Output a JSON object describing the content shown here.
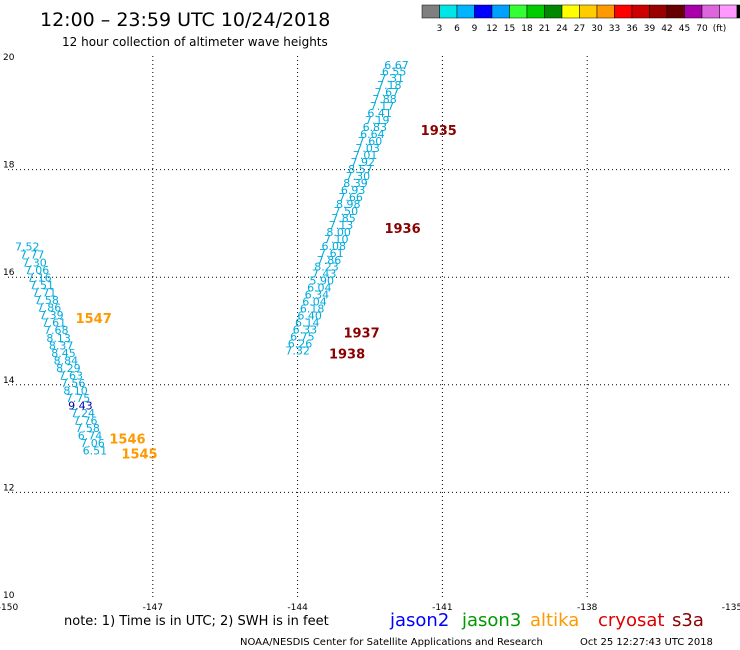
{
  "header": {
    "title": "12:00 – 23:59 UTC 10/24/2018",
    "subtitle": "12 hour collection of altimeter wave heights"
  },
  "scale_bar": {
    "colors": [
      "#7f7f7f",
      "#00e6e6",
      "#00b4ff",
      "#0000ff",
      "#00a0ff",
      "#33ff33",
      "#00cc00",
      "#008800",
      "#ffff00",
      "#ffcc00",
      "#ff9900",
      "#ff0000",
      "#cc0000",
      "#990000",
      "#660000",
      "#aa00aa",
      "#dd66dd",
      "#ff99ff",
      "#000000"
    ],
    "labels": [
      "3",
      "6",
      "9",
      "12",
      "15",
      "18",
      "21",
      "24",
      "27",
      "30",
      "33",
      "36",
      "39",
      "42",
      "45",
      "70",
      "(ft)"
    ]
  },
  "chart_data": {
    "type": "scatter",
    "title": "12:00 – 23:59 UTC 10/24/2018",
    "subtitle": "12 hour collection of altimeter wave heights",
    "xlabel": "",
    "ylabel": "",
    "xlim": [
      -150,
      -135
    ],
    "ylim": [
      10,
      20
    ],
    "x_ticks": [
      "-150",
      "-147",
      "-144",
      "-141",
      "-138",
      "-135"
    ],
    "y_ticks": [
      "10",
      "12",
      "14",
      "16",
      "18",
      "20"
    ],
    "grid": true,
    "series": [
      {
        "name": "altika",
        "color": "#00aadd",
        "points": [
          {
            "lon": -149.6,
            "lat": 16.5,
            "swh": "7.52"
          },
          {
            "lon": -149.5,
            "lat": 16.35,
            "swh": "7.77"
          },
          {
            "lon": -149.45,
            "lat": 16.2,
            "swh": "7.30"
          },
          {
            "lon": -149.4,
            "lat": 16.06,
            "swh": "7.06"
          },
          {
            "lon": -149.35,
            "lat": 15.92,
            "swh": "7.16"
          },
          {
            "lon": -149.3,
            "lat": 15.78,
            "swh": "7.51"
          },
          {
            "lon": -149.25,
            "lat": 15.64,
            "swh": "7.71"
          },
          {
            "lon": -149.2,
            "lat": 15.5,
            "swh": "7.58"
          },
          {
            "lon": -149.15,
            "lat": 15.36,
            "swh": "7.86"
          },
          {
            "lon": -149.1,
            "lat": 15.22,
            "swh": "7.39"
          },
          {
            "lon": -149.05,
            "lat": 15.08,
            "swh": "7.61"
          },
          {
            "lon": -149.0,
            "lat": 14.94,
            "swh": "7.68"
          },
          {
            "lon": -148.95,
            "lat": 14.8,
            "swh": "8.13"
          },
          {
            "lon": -148.9,
            "lat": 14.66,
            "swh": "8.37"
          },
          {
            "lon": -148.85,
            "lat": 14.52,
            "swh": "8.45"
          },
          {
            "lon": -148.8,
            "lat": 14.38,
            "swh": "8.84"
          },
          {
            "lon": -148.75,
            "lat": 14.24,
            "swh": "8.29"
          },
          {
            "lon": -148.7,
            "lat": 14.1,
            "swh": "7.63"
          },
          {
            "lon": -148.65,
            "lat": 13.96,
            "swh": "7.56"
          },
          {
            "lon": -148.6,
            "lat": 13.82,
            "swh": "8.10"
          },
          {
            "lon": -148.55,
            "lat": 13.68,
            "swh": "7.75"
          },
          {
            "lon": -148.5,
            "lat": 13.54,
            "swh": "9.43",
            "color": "#0000aa"
          },
          {
            "lon": -148.45,
            "lat": 13.4,
            "swh": "7.24"
          },
          {
            "lon": -148.4,
            "lat": 13.26,
            "swh": "7.76"
          },
          {
            "lon": -148.35,
            "lat": 13.12,
            "swh": "7.58"
          },
          {
            "lon": -148.3,
            "lat": 12.98,
            "swh": "6.74"
          },
          {
            "lon": -148.25,
            "lat": 12.84,
            "swh": "7.06"
          },
          {
            "lon": -148.2,
            "lat": 12.7,
            "swh": "6.51"
          }
        ]
      },
      {
        "name": "altika",
        "color": "#00aadd",
        "points": [
          {
            "lon": -141.95,
            "lat": 19.87,
            "swh": "6.67"
          },
          {
            "lon": -142.0,
            "lat": 19.75,
            "swh": "6.55"
          },
          {
            "lon": -142.05,
            "lat": 19.63,
            "swh": "7.31"
          },
          {
            "lon": -142.1,
            "lat": 19.5,
            "swh": "7.18"
          },
          {
            "lon": -142.15,
            "lat": 19.37,
            "swh": "7.67"
          },
          {
            "lon": -142.2,
            "lat": 19.24,
            "swh": "7.88"
          },
          {
            "lon": -142.25,
            "lat": 19.11,
            "swh": "7.17"
          },
          {
            "lon": -142.3,
            "lat": 18.98,
            "swh": "6.41"
          },
          {
            "lon": -142.35,
            "lat": 18.85,
            "swh": "7.19"
          },
          {
            "lon": -142.4,
            "lat": 18.72,
            "swh": "6.83"
          },
          {
            "lon": -142.45,
            "lat": 18.59,
            "swh": "6.64"
          },
          {
            "lon": -142.5,
            "lat": 18.46,
            "swh": "7.60"
          },
          {
            "lon": -142.55,
            "lat": 18.33,
            "swh": "7.03"
          },
          {
            "lon": -142.6,
            "lat": 18.2,
            "swh": "7.01"
          },
          {
            "lon": -142.65,
            "lat": 18.07,
            "swh": "7.92"
          },
          {
            "lon": -142.7,
            "lat": 17.94,
            "swh": "8.57"
          },
          {
            "lon": -142.75,
            "lat": 17.81,
            "swh": "7.30"
          },
          {
            "lon": -142.8,
            "lat": 17.68,
            "swh": "8.39"
          },
          {
            "lon": -142.85,
            "lat": 17.55,
            "swh": "6.93"
          },
          {
            "lon": -142.9,
            "lat": 17.42,
            "swh": "7.66"
          },
          {
            "lon": -142.95,
            "lat": 17.29,
            "swh": "8.98"
          },
          {
            "lon": -143.0,
            "lat": 17.16,
            "swh": "7.50"
          },
          {
            "lon": -143.05,
            "lat": 17.03,
            "swh": "7.85"
          },
          {
            "lon": -143.1,
            "lat": 16.9,
            "swh": "7.13"
          },
          {
            "lon": -143.15,
            "lat": 16.77,
            "swh": "8.00"
          },
          {
            "lon": -143.2,
            "lat": 16.64,
            "swh": "7.10"
          },
          {
            "lon": -143.25,
            "lat": 16.51,
            "swh": "6.08"
          },
          {
            "lon": -143.3,
            "lat": 16.38,
            "swh": "7.61"
          },
          {
            "lon": -143.35,
            "lat": 16.25,
            "swh": "7.86"
          },
          {
            "lon": -143.4,
            "lat": 16.12,
            "swh": "8.23"
          },
          {
            "lon": -143.45,
            "lat": 15.99,
            "swh": "7.43"
          },
          {
            "lon": -143.5,
            "lat": 15.86,
            "swh": "5.90"
          },
          {
            "lon": -143.55,
            "lat": 15.73,
            "swh": "6.04"
          },
          {
            "lon": -143.6,
            "lat": 15.6,
            "swh": "6.34"
          },
          {
            "lon": -143.65,
            "lat": 15.47,
            "swh": "6.04"
          },
          {
            "lon": -143.7,
            "lat": 15.34,
            "swh": "6.18"
          },
          {
            "lon": -143.75,
            "lat": 15.21,
            "swh": "6.40"
          },
          {
            "lon": -143.8,
            "lat": 15.08,
            "swh": "6.14"
          },
          {
            "lon": -143.85,
            "lat": 14.95,
            "swh": "6.33"
          },
          {
            "lon": -143.9,
            "lat": 14.82,
            "swh": "6.75"
          },
          {
            "lon": -143.95,
            "lat": 14.69,
            "swh": "6.26"
          },
          {
            "lon": -144.0,
            "lat": 14.56,
            "swh": "7.32"
          }
        ]
      }
    ],
    "time_labels": [
      {
        "text": "1547",
        "color": "#ff9900"
      },
      {
        "text": "1546",
        "color": "#ff9900"
      },
      {
        "text": "1545",
        "color": "#ff9900"
      },
      {
        "text": "1935",
        "color": "#8b0000"
      },
      {
        "text": "1936",
        "color": "#8b0000"
      },
      {
        "text": "1937",
        "color": "#8b0000"
      },
      {
        "text": "1938",
        "color": "#8b0000"
      }
    ]
  },
  "footer": {
    "note": "note:  1) Time is in UTC;  2) SWH is in feet",
    "legend": [
      {
        "name": "jason2",
        "color": "#0000ff"
      },
      {
        "name": "jason3",
        "color": "#009900"
      },
      {
        "name": "altika",
        "color": "#ff9900"
      },
      {
        "name": "cryosat",
        "color": "#dd0000"
      },
      {
        "name": "s3a",
        "color": "#880000"
      }
    ],
    "credit": "NOAA/NESDIS Center for Satellite Applications and Research",
    "timestamp": "Oct 25 12:27:43 UTC 2018"
  }
}
